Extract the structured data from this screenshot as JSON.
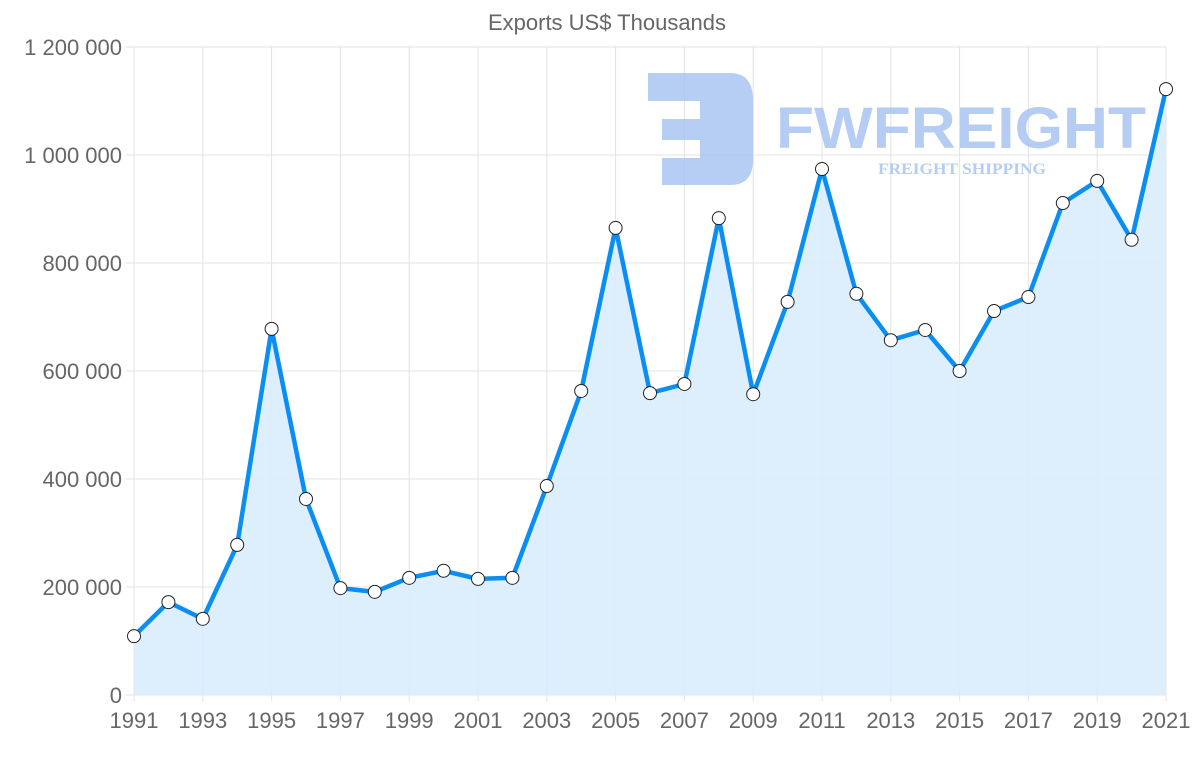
{
  "chart_data": {
    "type": "area",
    "title": "Exports US$ Thousands",
    "xlabel": "",
    "ylabel": "",
    "x": [
      1991,
      1992,
      1993,
      1994,
      1995,
      1996,
      1997,
      1998,
      1999,
      2000,
      2001,
      2002,
      2003,
      2004,
      2005,
      2006,
      2007,
      2008,
      2009,
      2010,
      2011,
      2012,
      2013,
      2014,
      2015,
      2016,
      2017,
      2018,
      2019,
      2020,
      2021
    ],
    "series": [
      {
        "name": "Exports US$ Thousands",
        "values": [
          109000,
          172000,
          141000,
          278000,
          678000,
          363000,
          198000,
          191000,
          217000,
          230000,
          215000,
          217000,
          387000,
          563000,
          865000,
          559000,
          576000,
          883000,
          557000,
          728000,
          974000,
          743000,
          657000,
          676000,
          600000,
          711000,
          737000,
          911000,
          952000,
          843000,
          1122000
        ]
      }
    ],
    "xlim": [
      1991,
      2021
    ],
    "ylim": [
      0,
      1200000
    ],
    "x_ticks": [
      "1991",
      "1993",
      "1995",
      "1997",
      "1999",
      "2001",
      "2003",
      "2005",
      "2007",
      "2009",
      "2011",
      "2013",
      "2015",
      "2017",
      "2019",
      "2021"
    ],
    "y_ticks": [
      "0",
      "200 000",
      "400 000",
      "600 000",
      "800 000",
      "1 000 000",
      "1 200 000"
    ],
    "grid": true,
    "legend": "none",
    "colors": {
      "line": "#0a8ef2",
      "fill": "#d9ecfd",
      "grid": "#e3e3e3",
      "watermark": "#a9c4f2"
    }
  },
  "watermark": {
    "brand": "FWFREIGHT",
    "tagline": "FREIGHT SHIPPING"
  }
}
